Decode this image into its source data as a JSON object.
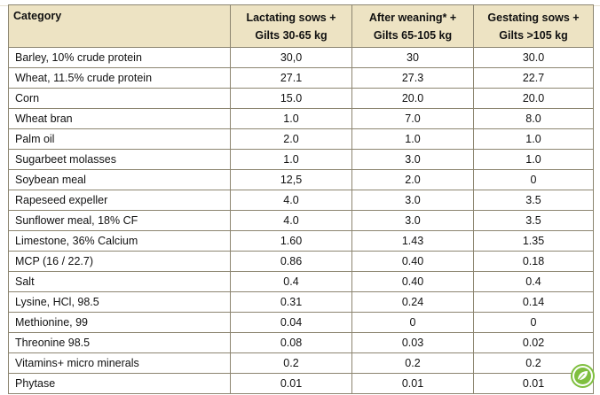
{
  "header": {
    "category": "Category",
    "columns": [
      {
        "line1": "Lactating sows +",
        "line2": "Gilts 30-65 kg"
      },
      {
        "line1": "After weaning* +",
        "line2": "Gilts 65-105 kg"
      },
      {
        "line1": "Gestating sows +",
        "line2": "Gilts >105 kg"
      }
    ]
  },
  "rows": [
    {
      "label": "Barley, 10% crude protein",
      "values": [
        "30,0",
        "30",
        "30.0"
      ]
    },
    {
      "label": "Wheat, 11.5% crude protein",
      "values": [
        "27.1",
        "27.3",
        "22.7"
      ]
    },
    {
      "label": "Corn",
      "values": [
        "15.0",
        "20.0",
        "20.0"
      ]
    },
    {
      "label": "Wheat bran",
      "values": [
        "1.0",
        "7.0",
        "8.0"
      ]
    },
    {
      "label": "Palm oil",
      "values": [
        "2.0",
        "1.0",
        "1.0"
      ]
    },
    {
      "label": "Sugarbeet molasses",
      "values": [
        "1.0",
        "3.0",
        "1.0"
      ]
    },
    {
      "label": "Soybean meal",
      "values": [
        "12,5",
        "2.0",
        "0"
      ]
    },
    {
      "label": "Rapeseed expeller",
      "values": [
        "4.0",
        "3.0",
        "3.5"
      ]
    },
    {
      "label": "Sunflower meal, 18% CF",
      "values": [
        "4.0",
        "3.0",
        "3.5"
      ]
    },
    {
      "label": "Limestone, 36% Calcium",
      "values": [
        "1.60",
        "1.43",
        "1.35"
      ]
    },
    {
      "label": "MCP (16 / 22.7)",
      "values": [
        "0.86",
        "0.40",
        "0.18"
      ]
    },
    {
      "label": "Salt",
      "values": [
        "0.4",
        "0.40",
        "0.4"
      ]
    },
    {
      "label": "Lysine, HCl, 98.5",
      "values": [
        "0.31",
        "0.24",
        "0.14"
      ]
    },
    {
      "label": "Methionine, 99",
      "values": [
        "0.04",
        "0",
        "0"
      ]
    },
    {
      "label": "Threonine 98.5",
      "values": [
        "0.08",
        "0.03",
        "0.02"
      ]
    },
    {
      "label": "Vitamins+ micro minerals",
      "values": [
        "0.2",
        "0.2",
        "0.2"
      ]
    },
    {
      "label": "Phytase",
      "values": [
        "0.01",
        "0.01",
        "0.01"
      ]
    }
  ],
  "colors": {
    "header_bg": "#ede3c3",
    "border": "#8c8570",
    "badge_green": "#7fbf3f"
  },
  "badge_icon": "leaf-badge-icon"
}
